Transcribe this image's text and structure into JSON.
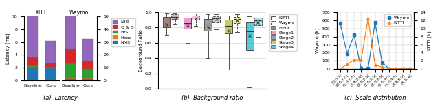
{
  "chart_data": [
    {
      "type": "bar",
      "stacked": true,
      "title": "KITTI",
      "ylabel": "Latency (ms)",
      "caption": "(a)  Latency",
      "categories": [
        "Baseline",
        "Ours"
      ],
      "series": [
        {
          "name": "NMS",
          "color": "#1f77b4",
          "values": [
            1.9,
            1.9
          ]
        },
        {
          "name": "Head",
          "color": "#ff7f0e",
          "values": [
            0.15,
            0.1
          ]
        },
        {
          "name": "FPS",
          "color": "#2ca02c",
          "values": [
            0.25,
            0.1
          ]
        },
        {
          "name": "Q & G",
          "color": "#d62728",
          "values": [
            1.3,
            0.6
          ]
        },
        {
          "name": "MLP",
          "color": "#9467bd",
          "values": [
            6.4,
            3.5
          ]
        }
      ],
      "ylim": [
        0,
        10
      ],
      "yticks": [
        0,
        2,
        4,
        6,
        8,
        10
      ]
    },
    {
      "type": "bar",
      "stacked": true,
      "title": "Waymo",
      "legend": "upper left",
      "categories": [
        "Baseline",
        "Ours"
      ],
      "series": [
        {
          "name": "NMS",
          "color": "#1f77b4",
          "values": [
            1.0,
            1.0
          ]
        },
        {
          "name": "Head",
          "color": "#ff7f0e",
          "values": [
            0.5,
            0.3
          ]
        },
        {
          "name": "FPS",
          "color": "#2ca02c",
          "values": [
            12.0,
            7.5
          ]
        },
        {
          "name": "Q & G",
          "color": "#d62728",
          "values": [
            11.0,
            6.0
          ]
        },
        {
          "name": "MLP",
          "color": "#9467bd",
          "values": [
            25.5,
            17.7
          ]
        }
      ],
      "ylim": [
        0,
        50
      ],
      "yticks": [
        0,
        10,
        20,
        30,
        40,
        50
      ]
    },
    {
      "type": "box",
      "ylabel": "Background Ratio",
      "caption": "(b)  Background ratio",
      "grid": "y",
      "legend": "upper left",
      "tick_labels": "y",
      "categories": [
        "Input",
        "Stage1",
        "Stage2",
        "Stage3",
        "Stage4"
      ],
      "colors": [
        "#8c564b",
        "#e377c2",
        "#7f7f7f",
        "#bcbd22",
        "#17becf"
      ],
      "series": [
        {
          "name": "KITTI",
          "line_style": "solid",
          "values": [
            {
              "med": 0.87,
              "q1": 0.8,
              "q3": 0.94,
              "whislo": 0.7,
              "whishi": 0.99,
              "mean": 0.84
            },
            {
              "med": 0.86,
              "q1": 0.79,
              "q3": 0.93,
              "whislo": 0.6,
              "whishi": 0.98,
              "mean": 0.83
            },
            {
              "med": 0.84,
              "q1": 0.76,
              "q3": 0.91,
              "whislo": 0.4,
              "whishi": 0.97,
              "mean": 0.8
            },
            {
              "med": 0.82,
              "q1": 0.72,
              "q3": 0.9,
              "whislo": 0.25,
              "whishi": 0.96,
              "mean": 0.76
            },
            {
              "med": 0.75,
              "q1": 0.5,
              "q3": 0.88,
              "whislo": 0.02,
              "whishi": 0.95,
              "mean": 0.7
            }
          ]
        },
        {
          "name": "Waymo",
          "line_style": "dashed",
          "values": [
            {
              "med": 0.94,
              "q1": 0.91,
              "q3": 0.97,
              "whislo": 0.85,
              "whishi": 0.99,
              "mean": 0.93
            },
            {
              "med": 0.93,
              "q1": 0.9,
              "q3": 0.96,
              "whislo": 0.82,
              "whishi": 0.98,
              "mean": 0.92
            },
            {
              "med": 0.92,
              "q1": 0.88,
              "q3": 0.95,
              "whislo": 0.78,
              "whishi": 0.97,
              "mean": 0.91
            },
            {
              "med": 0.91,
              "q1": 0.86,
              "q3": 0.94,
              "whislo": 0.74,
              "whishi": 0.97,
              "mean": 0.89
            },
            {
              "med": 0.89,
              "q1": 0.83,
              "q3": 0.93,
              "whislo": 0.68,
              "whishi": 0.96,
              "mean": 0.87
            }
          ]
        }
      ],
      "ylim": [
        0,
        1.0
      ],
      "yticks": [
        {
          "value": 0,
          "label": "0.0"
        },
        0.2,
        0.4,
        0.6,
        0.8,
        {
          "value": 1.0,
          "label": "1.0"
        }
      ]
    },
    {
      "type": "line",
      "ylabel": "Waymo (k)",
      "y2label": "KITTI (k)",
      "caption": "(c)  Scale distribution",
      "grid": true,
      "legend": "upper right",
      "categories": [
        "[0,0.5)",
        "[0.5,1.0)",
        "[1.0,1.5)",
        "[1.5,2.0)",
        "[2.0,2.5)",
        "[2.5,3.0)",
        "[3.0,3.5)",
        "[3.5,4.0)",
        "[4.0,4.5)",
        "[4.5,5.0)",
        "[5.0,+)"
      ],
      "series": [
        {
          "name": "Waymo",
          "color": "#1f77b4",
          "marker": "square",
          "values": [
            570,
            190,
            420,
            10,
            10,
            575,
            80,
            5,
            3,
            2,
            2
          ]
        },
        {
          "name": "KITTI",
          "axis": "y2",
          "color": "#ff7f0e",
          "marker": "triangle",
          "values": [
            0.0,
            1.2,
            2.2,
            2.2,
            12.5,
            1.0,
            0.5,
            0.2,
            0.05,
            0.02,
            0.02
          ]
        }
      ],
      "ylim": [
        0,
        700
      ],
      "yticks": [
        0,
        100,
        200,
        300,
        400,
        500,
        600,
        700
      ],
      "y2lim": [
        0,
        14
      ],
      "y2ticks": [
        0,
        2,
        4,
        6,
        8,
        10,
        12,
        14
      ]
    }
  ]
}
